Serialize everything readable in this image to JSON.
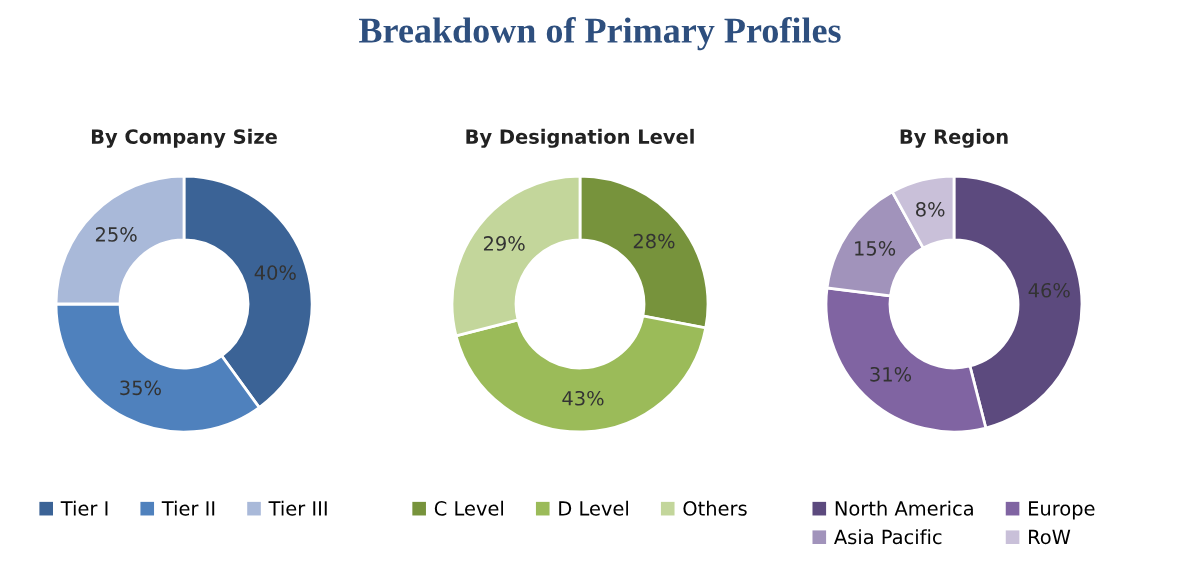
{
  "chart_data": [
    {
      "type": "donut",
      "title": "By Company Size",
      "annotations": [
        "Breakdown of Primary Profiles"
      ],
      "categories": [
        "Tier I",
        "Tier II",
        "Tier III"
      ],
      "values": [
        40,
        35,
        25
      ],
      "colors": [
        "#3b6396",
        "#4f81bd",
        "#a9b9d9"
      ],
      "value_labels": [
        "40%",
        "35%",
        "25%"
      ],
      "legend": "bottom"
    },
    {
      "type": "donut",
      "title": "By Designation Level",
      "categories": [
        "C Level",
        "D Level",
        "Others"
      ],
      "values": [
        28,
        43,
        29
      ],
      "colors": [
        "#77933c",
        "#9bbb59",
        "#c3d69b"
      ],
      "value_labels": [
        "28%",
        "43%",
        "29%"
      ],
      "legend": "bottom"
    },
    {
      "type": "donut",
      "title": "By Region",
      "categories": [
        "North America",
        "Europe",
        "Asia Pacific",
        "RoW"
      ],
      "values": [
        46,
        31,
        15,
        8
      ],
      "colors": [
        "#5c4a7e",
        "#8064a2",
        "#a193bb",
        "#c9c0d9"
      ],
      "value_labels": [
        "46%",
        "31%",
        "15%",
        "8%"
      ],
      "legend": "bottom"
    }
  ]
}
